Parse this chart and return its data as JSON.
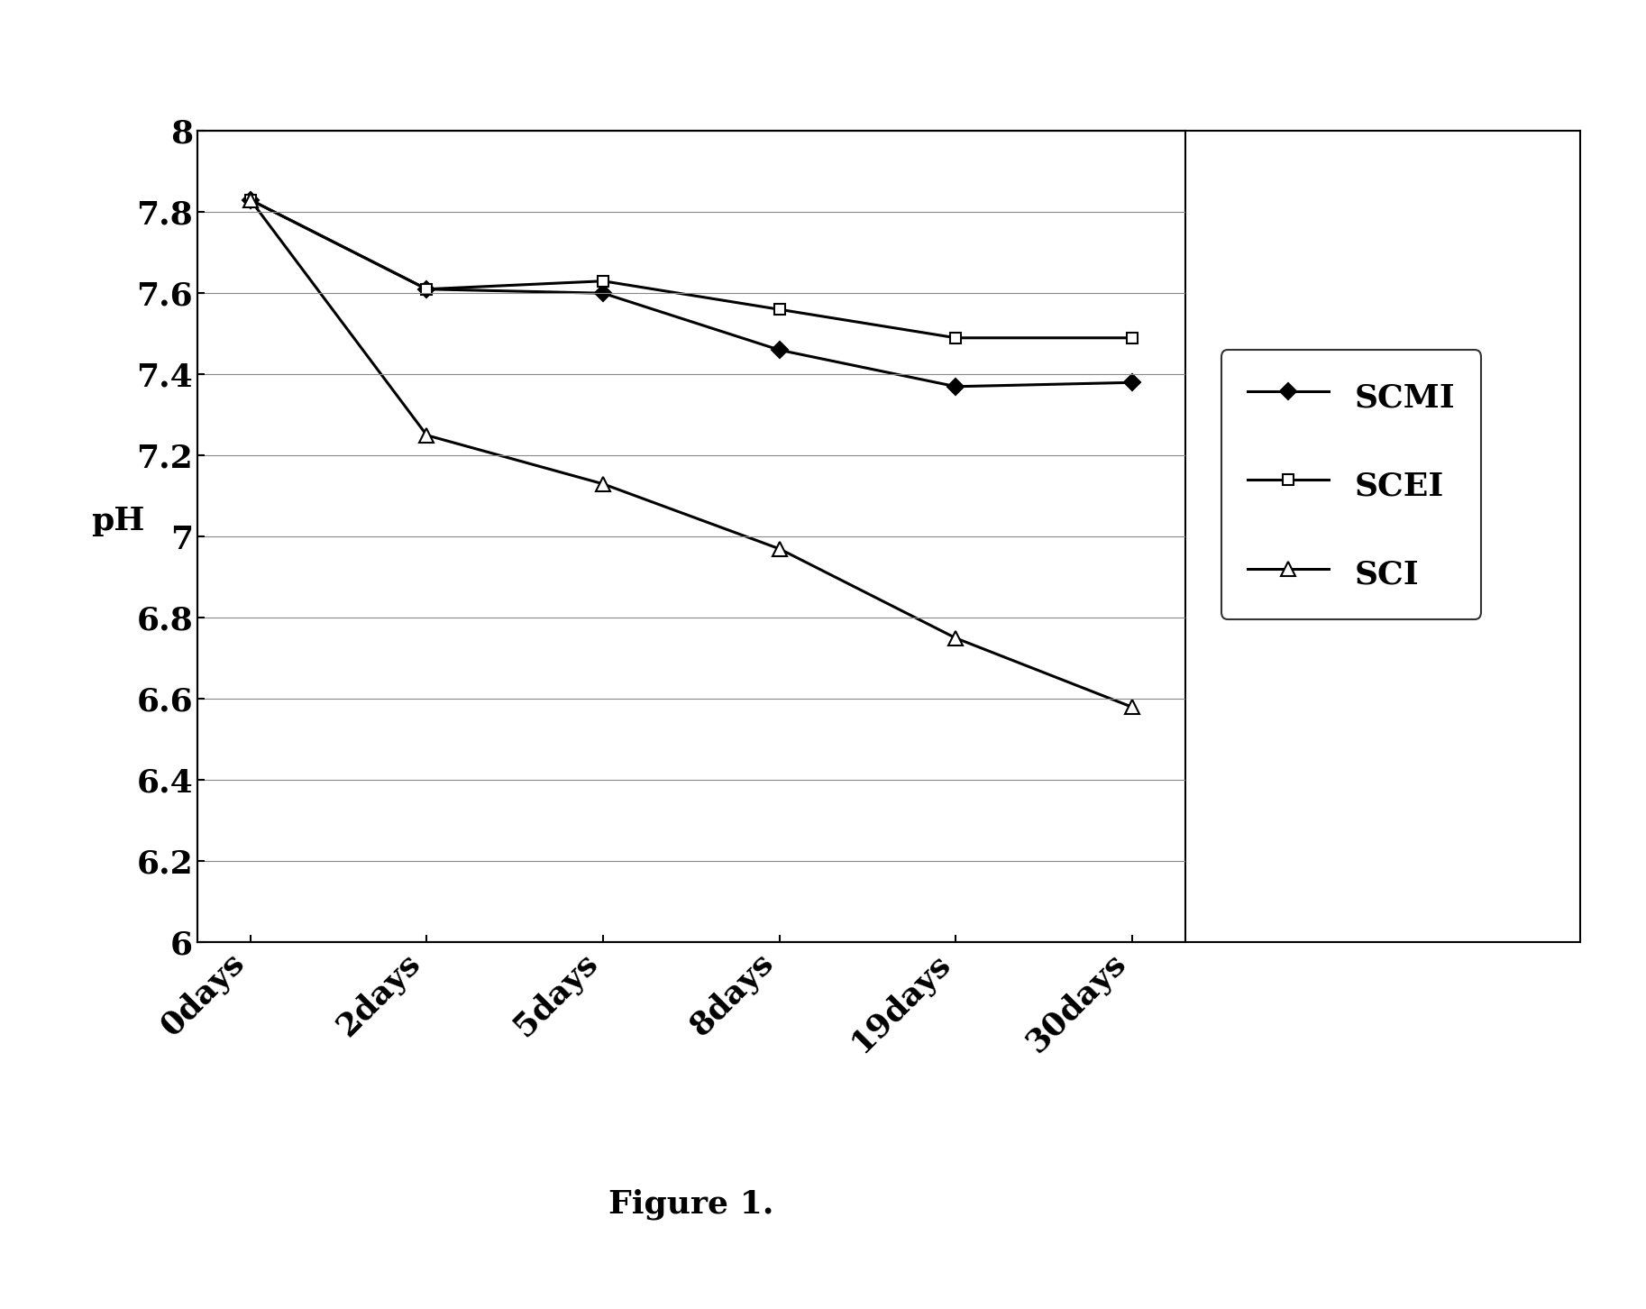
{
  "x_labels": [
    "0days",
    "2days",
    "5days",
    "8days",
    "19days",
    "30days"
  ],
  "x_positions": [
    0,
    1,
    2,
    3,
    4,
    5
  ],
  "series_order": [
    "SCMI",
    "SCEI",
    "SCI"
  ],
  "series": {
    "SCMI": {
      "values": [
        7.83,
        7.61,
        7.6,
        7.46,
        7.37,
        7.38
      ],
      "marker": "D",
      "markersize": 9,
      "markerfacecolor": "black",
      "markeredgecolor": "black"
    },
    "SCEI": {
      "values": [
        7.83,
        7.61,
        7.63,
        7.56,
        7.49,
        7.49
      ],
      "marker": "s",
      "markersize": 9,
      "markerfacecolor": "white",
      "markeredgecolor": "black"
    },
    "SCI": {
      "values": [
        7.83,
        7.25,
        7.13,
        6.97,
        6.75,
        6.58
      ],
      "marker": "^",
      "markersize": 11,
      "markerfacecolor": "white",
      "markeredgecolor": "black"
    }
  },
  "ylabel": "pH",
  "ylim": [
    6.0,
    8.0
  ],
  "yticks": [
    6.0,
    6.2,
    6.4,
    6.6,
    6.8,
    7.0,
    7.2,
    7.4,
    7.6,
    7.8,
    8.0
  ],
  "caption": "Figure 1.",
  "background_color": "#ffffff",
  "grid_color": "#888888",
  "linewidth": 2.2,
  "tick_fontsize": 26,
  "ylabel_fontsize": 26,
  "legend_fontsize": 26,
  "caption_fontsize": 26,
  "xtick_rotation": 45
}
